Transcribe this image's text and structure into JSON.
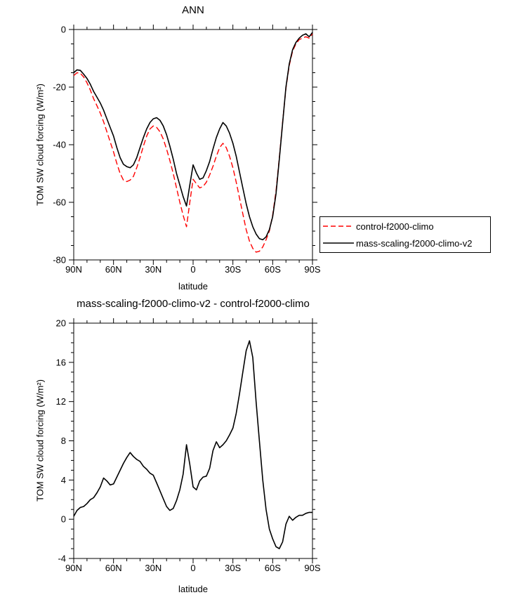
{
  "page": {
    "background": "#ffffff"
  },
  "chart_data": [
    {
      "type": "line",
      "title": "ANN",
      "xlabel": "latitude",
      "ylabel": "TOM SW cloud forcing (W/m²)",
      "xlim": [
        90,
        -90
      ],
      "ylim": [
        -80,
        0
      ],
      "x_major_ticks": [
        90,
        60,
        30,
        0,
        -30,
        -60,
        -90
      ],
      "x_major_labels": [
        "90N",
        "60N",
        "30N",
        "0",
        "30S",
        "60S",
        "90S"
      ],
      "x_minor_step": 10,
      "y_major_ticks": [
        0,
        -20,
        -40,
        -60,
        -80
      ],
      "y_major_labels": [
        "0",
        "-20",
        "-40",
        "-60",
        "-80"
      ],
      "y_minor_step": 5,
      "grid": false,
      "legend_position": "right-outside",
      "x": [
        90,
        87.5,
        85,
        82.5,
        80,
        77.5,
        75,
        72.5,
        70,
        67.5,
        65,
        62.5,
        60,
        57.5,
        55,
        52.5,
        50,
        47.5,
        45,
        42.5,
        40,
        37.5,
        35,
        32.5,
        30,
        27.5,
        25,
        22.5,
        20,
        17.5,
        15,
        12.5,
        10,
        7.5,
        5,
        2.5,
        0,
        -2.5,
        -5,
        -7.5,
        -10,
        -12.5,
        -15,
        -17.5,
        -20,
        -22.5,
        -25,
        -27.5,
        -30,
        -32.5,
        -35,
        -37.5,
        -40,
        -42.5,
        -45,
        -47.5,
        -50,
        -52.5,
        -55,
        -57.5,
        -60,
        -62.5,
        -65,
        -67.5,
        -70,
        -72.5,
        -75,
        -77.5,
        -80,
        -82.5,
        -85,
        -87.5,
        -90
      ],
      "series": [
        {
          "name": "control-f2000-climo",
          "color": "#ff0000",
          "style": "dashed",
          "values": [
            -16,
            -15,
            -15.2,
            -16.5,
            -18.5,
            -21,
            -24,
            -26.5,
            -29,
            -32,
            -35.5,
            -39,
            -42.5,
            -46.5,
            -50,
            -52.3,
            -52.8,
            -52.3,
            -51,
            -48,
            -44.5,
            -40.5,
            -37,
            -34.5,
            -33.5,
            -34,
            -35.5,
            -38,
            -41.5,
            -45.5,
            -50,
            -55,
            -60,
            -64.5,
            -68.5,
            -60,
            -52,
            -53.5,
            -55,
            -54.5,
            -53,
            -50.5,
            -47.5,
            -44,
            -41,
            -39.5,
            -41,
            -44,
            -48,
            -53,
            -58.5,
            -64,
            -69.5,
            -73.5,
            -76,
            -77.3,
            -77,
            -75.5,
            -73,
            -70,
            -64.5,
            -56,
            -44.5,
            -32,
            -20.5,
            -12.5,
            -7.5,
            -5,
            -3.5,
            -3,
            -2.5,
            -3,
            -1.5
          ]
        },
        {
          "name": "mass-scaling-f2000-climo-v2",
          "color": "#000000",
          "style": "solid",
          "values": [
            -15,
            -14,
            -14.2,
            -15.5,
            -17,
            -19,
            -21.5,
            -23.5,
            -25.5,
            -28,
            -31,
            -34,
            -37,
            -41,
            -44.5,
            -46.8,
            -47.6,
            -48,
            -47,
            -44.5,
            -41,
            -37.5,
            -34.5,
            -32.3,
            -31,
            -30.6,
            -31.5,
            -33.5,
            -36.5,
            -40.5,
            -45,
            -50,
            -54,
            -58,
            -61.3,
            -54,
            -47,
            -49.8,
            -52,
            -51.5,
            -49,
            -45.8,
            -41.5,
            -37.5,
            -34.5,
            -32.3,
            -33.5,
            -36,
            -39.5,
            -44,
            -49.5,
            -55,
            -60.5,
            -65,
            -68.5,
            -71,
            -72.6,
            -73,
            -72,
            -69.5,
            -65,
            -57,
            -45,
            -32.5,
            -20,
            -12,
            -7,
            -4.5,
            -3,
            -2,
            -1.5,
            -2.5,
            -1
          ]
        }
      ]
    },
    {
      "type": "line",
      "title": "mass-scaling-f2000-climo-v2 - control-f2000-climo",
      "xlabel": "latitude",
      "ylabel": "TOM SW cloud forcing (W/m²)",
      "xlim": [
        90,
        -90
      ],
      "ylim": [
        -4,
        20
      ],
      "x_major_ticks": [
        90,
        60,
        30,
        0,
        -30,
        -60,
        -90
      ],
      "x_major_labels": [
        "90N",
        "60N",
        "30N",
        "0",
        "30S",
        "60S",
        "90S"
      ],
      "x_minor_step": 10,
      "y_major_ticks": [
        20,
        16,
        12,
        8,
        4,
        0,
        -4
      ],
      "y_major_labels": [
        "20",
        "16",
        "12",
        "8",
        "4",
        "0",
        "-4"
      ],
      "y_minor_step": 1,
      "grid": false,
      "x": [
        90,
        87.5,
        85,
        82.5,
        80,
        77.5,
        75,
        72.5,
        70,
        67.5,
        65,
        62.5,
        60,
        57.5,
        55,
        52.5,
        50,
        47.5,
        45,
        42.5,
        40,
        37.5,
        35,
        32.5,
        30,
        27.5,
        25,
        22.5,
        20,
        17.5,
        15,
        12.5,
        10,
        7.5,
        5,
        2.5,
        0,
        -2.5,
        -5,
        -7.5,
        -10,
        -12.5,
        -15,
        -17.5,
        -20,
        -22.5,
        -25,
        -27.5,
        -30,
        -32.5,
        -35,
        -37.5,
        -40,
        -42.5,
        -45,
        -47.5,
        -50,
        -52.5,
        -55,
        -57.5,
        -60,
        -62.5,
        -65,
        -67.5,
        -70,
        -72.5,
        -75,
        -77.5,
        -80,
        -82.5,
        -85,
        -87.5,
        -90
      ],
      "series": [
        {
          "name": "mass-scaling-f2000-climo-v2 - control-f2000-climo",
          "color": "#000000",
          "style": "solid",
          "values": [
            0.3,
            0.9,
            1.2,
            1.3,
            1.6,
            2.0,
            2.2,
            2.7,
            3.3,
            4.2,
            3.9,
            3.5,
            3.6,
            4.3,
            5.0,
            5.7,
            6.3,
            6.8,
            6.4,
            6.1,
            5.9,
            5.4,
            5.1,
            4.7,
            4.5,
            3.7,
            2.9,
            2.1,
            1.3,
            0.9,
            1.1,
            1.9,
            3.0,
            4.6,
            7.6,
            5.6,
            3.3,
            3.0,
            3.9,
            4.3,
            4.4,
            5.2,
            7.0,
            7.9,
            7.3,
            7.6,
            8.0,
            8.6,
            9.3,
            10.8,
            12.8,
            15.0,
            17.2,
            18.2,
            16.5,
            12.0,
            8.0,
            4.0,
            1.0,
            -1.0,
            -2.0,
            -2.8,
            -3.0,
            -2.3,
            -0.5,
            0.3,
            -0.1,
            0.2,
            0.4,
            0.4,
            0.6,
            0.7,
            0.7
          ]
        }
      ]
    }
  ]
}
